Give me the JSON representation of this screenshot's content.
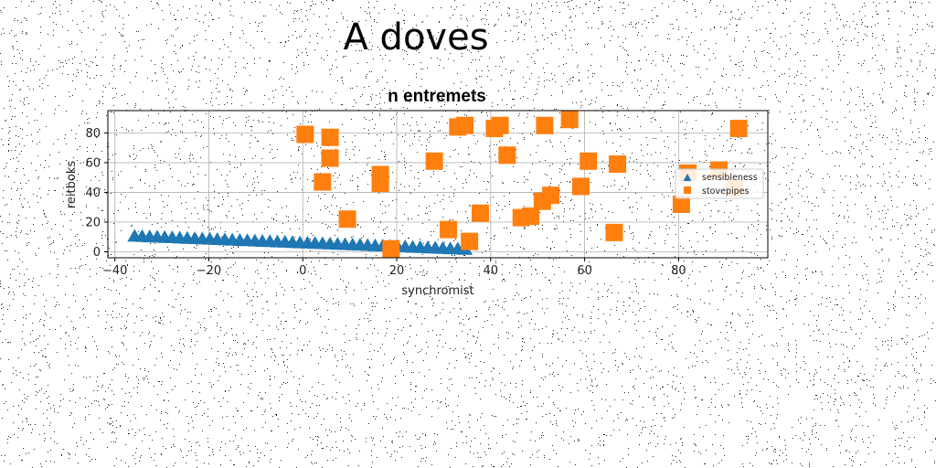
{
  "page_title": "A doves",
  "chart_data": {
    "type": "scatter",
    "title": "n entremets",
    "xlabel": "synchromist",
    "ylabel": "reitboks",
    "xlim": [
      -41.5,
      99
    ],
    "ylim": [
      -4,
      95
    ],
    "xticks": [
      -40,
      -20,
      0,
      20,
      40,
      60,
      80
    ],
    "yticks": [
      0,
      20,
      40,
      60,
      80
    ],
    "grid": true,
    "legend_position": "center-right",
    "series": [
      {
        "name": "sensibleness",
        "marker": "triangle",
        "color": "#1f77b4",
        "x": [
          -35.8,
          -34.2,
          -32.6,
          -31.0,
          -29.4,
          -27.8,
          -26.2,
          -24.6,
          -23.0,
          -21.4,
          -19.8,
          -18.2,
          -16.6,
          -15.0,
          -13.4,
          -11.8,
          -10.2,
          -8.6,
          -7.0,
          -5.4,
          -3.8,
          -2.2,
          -0.6,
          1.0,
          2.6,
          4.2,
          5.8,
          7.4,
          9.0,
          10.6,
          12.2,
          13.8,
          15.4,
          17.0,
          18.6,
          20.2,
          21.8,
          23.4,
          25.0,
          26.6,
          28.2,
          29.8,
          31.4,
          33.0,
          34.6
        ],
        "y": [
          10.5,
          10.3,
          10.1,
          9.9,
          9.7,
          9.5,
          9.3,
          9.1,
          8.9,
          8.7,
          8.5,
          8.3,
          8.1,
          7.9,
          7.7,
          7.5,
          7.3,
          7.1,
          6.9,
          6.7,
          6.5,
          6.3,
          6.1,
          5.9,
          5.7,
          5.5,
          5.3,
          5.1,
          4.9,
          4.7,
          4.5,
          4.3,
          4.1,
          3.9,
          3.7,
          3.5,
          3.3,
          3.1,
          2.9,
          2.7,
          2.5,
          2.3,
          2.1,
          1.9,
          1.7
        ]
      },
      {
        "name": "stovepipes",
        "marker": "square",
        "color": "#ff7f0e",
        "x": [
          0.5,
          4.2,
          5.8,
          5.8,
          9.5,
          16.5,
          16.5,
          18.8,
          28.0,
          31.0,
          33.0,
          34.5,
          35.5,
          37.8,
          40.8,
          42.0,
          43.5,
          46.5,
          48.5,
          51.0,
          51.5,
          52.8,
          56.8,
          59.2,
          60.8,
          67.0,
          80.6,
          82.0,
          88.6,
          92.0,
          66.3,
          92.8
        ],
        "y": [
          79,
          47,
          77,
          63,
          22,
          52,
          46,
          2,
          61,
          15,
          84,
          85,
          7,
          26,
          83,
          85,
          65,
          23,
          24,
          34,
          85,
          38,
          89,
          44,
          61,
          59,
          32,
          53,
          55,
          43,
          13,
          83
        ]
      }
    ]
  }
}
